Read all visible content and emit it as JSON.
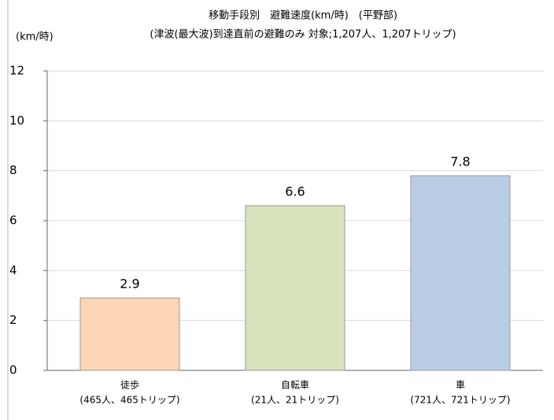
{
  "chart_data": {
    "type": "bar",
    "title": "移動手段別　避難速度(km/時)　(平野部)",
    "subtitle": "(津波(最大波)到達直前の避難のみ 対象;1,207人、1,207トリップ)",
    "y_axis_label": "(km/時)",
    "categories": [
      "徒歩",
      "自転車",
      "車"
    ],
    "category_sublabels": [
      "(465人、465トリップ)",
      "(21人、21トリップ)",
      "(721人、721トリップ)"
    ],
    "values": [
      2.9,
      6.6,
      7.8
    ],
    "colors": [
      "#fcd5b5",
      "#d7e4bd",
      "#b9cde5"
    ],
    "ylim": [
      0,
      12
    ],
    "yticks": [
      0,
      2,
      4,
      6,
      8,
      10,
      12
    ],
    "grid": true
  }
}
